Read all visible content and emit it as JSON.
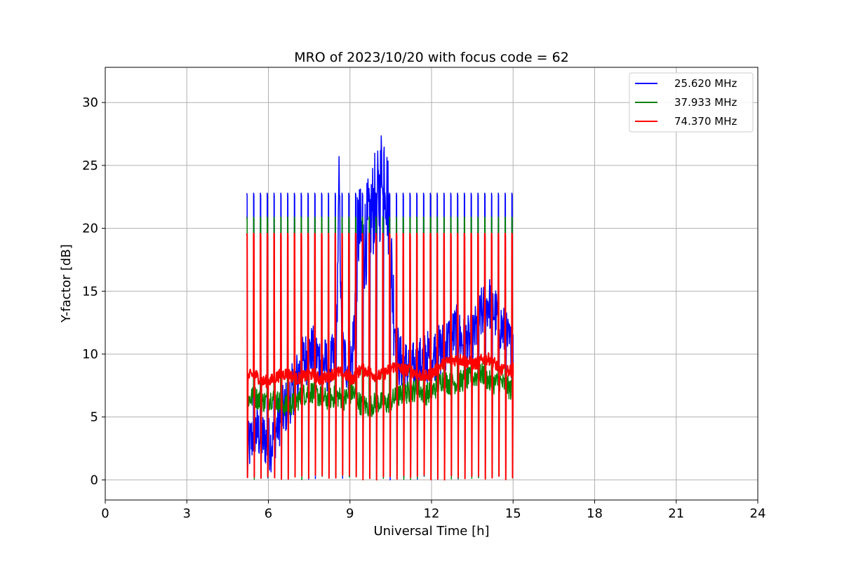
{
  "chart_data": {
    "type": "line",
    "title": "MRO of 2023/10/20 with focus code = 62",
    "xlabel": "Universal Time [h]",
    "ylabel": "Y-factor [dB]",
    "xlim": [
      0,
      24
    ],
    "ylim": [
      -1.6,
      32.8
    ],
    "xticks": [
      0,
      3,
      6,
      9,
      12,
      15,
      18,
      21,
      24
    ],
    "yticks": [
      0,
      5,
      10,
      15,
      20,
      25,
      30
    ],
    "grid": true,
    "legend_position": "top-right",
    "colors": {
      "s1": "#0000ff",
      "s2": "#008000",
      "s3": "#ff0000",
      "grid": "#b0b0b0"
    },
    "data_range_h": [
      5.2,
      15.0
    ],
    "calibration_period_h": 0.25,
    "series": [
      {
        "name": "25.620 MHz",
        "color": "#0000ff",
        "cal_peak_db": 22.8,
        "values": [
          [
            5.2,
            2.0
          ],
          [
            5.5,
            4.0
          ],
          [
            5.8,
            3.3
          ],
          [
            6.1,
            2.8
          ],
          [
            6.4,
            4.8
          ],
          [
            6.7,
            6.0
          ],
          [
            7.0,
            7.8
          ],
          [
            7.3,
            9.5
          ],
          [
            7.6,
            10.2
          ],
          [
            7.9,
            9.6
          ],
          [
            8.2,
            9.0
          ],
          [
            8.5,
            9.8
          ],
          [
            8.6,
            24.0
          ],
          [
            8.7,
            10.5
          ],
          [
            8.9,
            9.0
          ],
          [
            9.1,
            9.5
          ],
          [
            9.3,
            20.0
          ],
          [
            9.5,
            18.5
          ],
          [
            9.7,
            20.5
          ],
          [
            9.9,
            22.0
          ],
          [
            10.1,
            22.5
          ],
          [
            10.2,
            26.5
          ],
          [
            10.4,
            22.0
          ],
          [
            10.6,
            14.0
          ],
          [
            10.8,
            9.5
          ],
          [
            11.1,
            9.0
          ],
          [
            11.4,
            8.8
          ],
          [
            11.7,
            9.5
          ],
          [
            12.0,
            10.0
          ],
          [
            12.3,
            10.2
          ],
          [
            12.6,
            11.0
          ],
          [
            12.9,
            11.8
          ],
          [
            13.2,
            10.8
          ],
          [
            13.5,
            11.0
          ],
          [
            13.8,
            13.0
          ],
          [
            14.1,
            14.2
          ],
          [
            14.4,
            13.0
          ],
          [
            14.7,
            11.5
          ],
          [
            15.0,
            10.0
          ]
        ]
      },
      {
        "name": "37.933 MHz",
        "color": "#008000",
        "cal_peak_db": 20.9,
        "values": [
          [
            5.2,
            6.4
          ],
          [
            5.5,
            6.6
          ],
          [
            5.8,
            6.2
          ],
          [
            6.1,
            6.5
          ],
          [
            6.4,
            6.2
          ],
          [
            6.7,
            5.8
          ],
          [
            7.0,
            6.2
          ],
          [
            7.3,
            6.8
          ],
          [
            7.6,
            7.0
          ],
          [
            7.9,
            6.6
          ],
          [
            8.2,
            6.4
          ],
          [
            8.5,
            6.7
          ],
          [
            8.8,
            6.4
          ],
          [
            9.1,
            7.0
          ],
          [
            9.4,
            6.0
          ],
          [
            9.7,
            5.8
          ],
          [
            10.0,
            6.2
          ],
          [
            10.3,
            6.0
          ],
          [
            10.6,
            6.4
          ],
          [
            10.9,
            6.8
          ],
          [
            11.2,
            7.0
          ],
          [
            11.5,
            7.2
          ],
          [
            11.8,
            6.8
          ],
          [
            12.1,
            7.2
          ],
          [
            12.4,
            8.0
          ],
          [
            12.7,
            7.6
          ],
          [
            13.0,
            7.8
          ],
          [
            13.3,
            8.0
          ],
          [
            13.6,
            8.2
          ],
          [
            13.9,
            8.4
          ],
          [
            14.2,
            7.6
          ],
          [
            14.5,
            7.8
          ],
          [
            14.8,
            7.4
          ],
          [
            15.0,
            7.0
          ]
        ]
      },
      {
        "name": "74.370 MHz",
        "color": "#ff0000",
        "cal_peak_db": 19.6,
        "values": [
          [
            5.2,
            8.2
          ],
          [
            5.5,
            8.4
          ],
          [
            5.8,
            7.8
          ],
          [
            6.1,
            7.9
          ],
          [
            6.4,
            8.3
          ],
          [
            6.7,
            8.5
          ],
          [
            7.0,
            8.0
          ],
          [
            7.3,
            8.2
          ],
          [
            7.6,
            8.4
          ],
          [
            7.9,
            8.0
          ],
          [
            8.2,
            8.2
          ],
          [
            8.5,
            8.6
          ],
          [
            8.8,
            8.4
          ],
          [
            9.1,
            8.0
          ],
          [
            9.4,
            8.8
          ],
          [
            9.7,
            8.6
          ],
          [
            10.0,
            8.2
          ],
          [
            10.3,
            8.5
          ],
          [
            10.6,
            9.0
          ],
          [
            10.9,
            8.8
          ],
          [
            11.2,
            8.7
          ],
          [
            11.5,
            8.4
          ],
          [
            11.8,
            8.2
          ],
          [
            12.1,
            8.6
          ],
          [
            12.4,
            9.2
          ],
          [
            12.7,
            9.5
          ],
          [
            13.0,
            9.6
          ],
          [
            13.3,
            9.4
          ],
          [
            13.6,
            9.2
          ],
          [
            13.9,
            9.6
          ],
          [
            14.2,
            9.6
          ],
          [
            14.5,
            8.8
          ],
          [
            14.8,
            8.6
          ],
          [
            15.0,
            8.8
          ]
        ]
      }
    ]
  }
}
